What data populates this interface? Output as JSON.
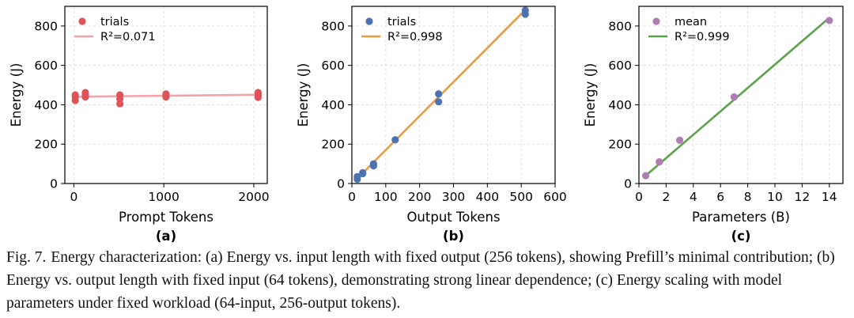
{
  "charts": [
    {
      "chart_data": {
        "type": "scatter",
        "panel_label": "(a)",
        "xlabel": "Prompt Tokens",
        "ylabel": "Energy (J)",
        "xlim": [
          -100,
          2150
        ],
        "ylim": [
          0,
          900
        ],
        "xticks": [
          0,
          1000,
          2000
        ],
        "yticks": [
          0,
          200,
          400,
          600,
          800
        ],
        "grid": true,
        "legend": "top-left",
        "points": {
          "name": "trials",
          "color": "#dd5359",
          "x": [
            16,
            16,
            16,
            128,
            128,
            128,
            512,
            512,
            512,
            1024,
            1024,
            2048,
            2048,
            2048
          ],
          "y": [
            450,
            440,
            422,
            462,
            450,
            440,
            450,
            430,
            405,
            455,
            440,
            462,
            450,
            438
          ]
        },
        "fit": {
          "label": "R²=0.071",
          "color": "#f4a2a8",
          "x": [
            0,
            2048
          ],
          "y": [
            441,
            451
          ]
        }
      }
    },
    {
      "chart_data": {
        "type": "scatter",
        "panel_label": "(b)",
        "xlabel": "Output Tokens",
        "ylabel": "Energy (J)",
        "xlim": [
          0,
          600
        ],
        "ylim": [
          0,
          900
        ],
        "xticks": [
          0,
          100,
          200,
          300,
          400,
          500,
          600
        ],
        "yticks": [
          0,
          200,
          400,
          600,
          800
        ],
        "grid": true,
        "legend": "top-left",
        "points": {
          "name": "trials",
          "color": "#4c72b0",
          "x": [
            16,
            16,
            32,
            32,
            64,
            64,
            128,
            256,
            256,
            512,
            512
          ],
          "y": [
            35,
            22,
            55,
            50,
            100,
            90,
            222,
            455,
            415,
            880,
            860
          ]
        },
        "fit": {
          "label": "R²=0.998",
          "color": "#ee9a3a",
          "x": [
            10,
            512
          ],
          "y": [
            15,
            882
          ]
        }
      }
    },
    {
      "chart_data": {
        "type": "scatter",
        "panel_label": "(c)",
        "xlabel": "Parameters (B)",
        "ylabel": "Energy (J)",
        "xlim": [
          0,
          15
        ],
        "ylim": [
          0,
          900
        ],
        "xticks": [
          0,
          2,
          4,
          6,
          8,
          10,
          12,
          14
        ],
        "yticks": [
          0,
          200,
          400,
          600,
          800
        ],
        "grid": true,
        "legend": "top-left",
        "points": {
          "name": "mean",
          "color": "#b07db3",
          "x": [
            0.5,
            1.5,
            3,
            7,
            14
          ],
          "y": [
            40,
            110,
            220,
            440,
            828
          ]
        },
        "fit": {
          "label": "R²=0.999",
          "color": "#5ca24b",
          "x": [
            0.5,
            14
          ],
          "y": [
            40,
            842
          ]
        }
      }
    }
  ],
  "caption": {
    "fig_number": "Fig. 7.",
    "text": "Energy characterization: (a) Energy vs. input length with fixed output (256 tokens), showing Prefill’s minimal contribution; (b) Energy vs. output length with fixed input (64 tokens), demonstrating strong linear dependence; (c) Energy scaling with model parameters under fixed workload (64-input, 256-output tokens)."
  }
}
